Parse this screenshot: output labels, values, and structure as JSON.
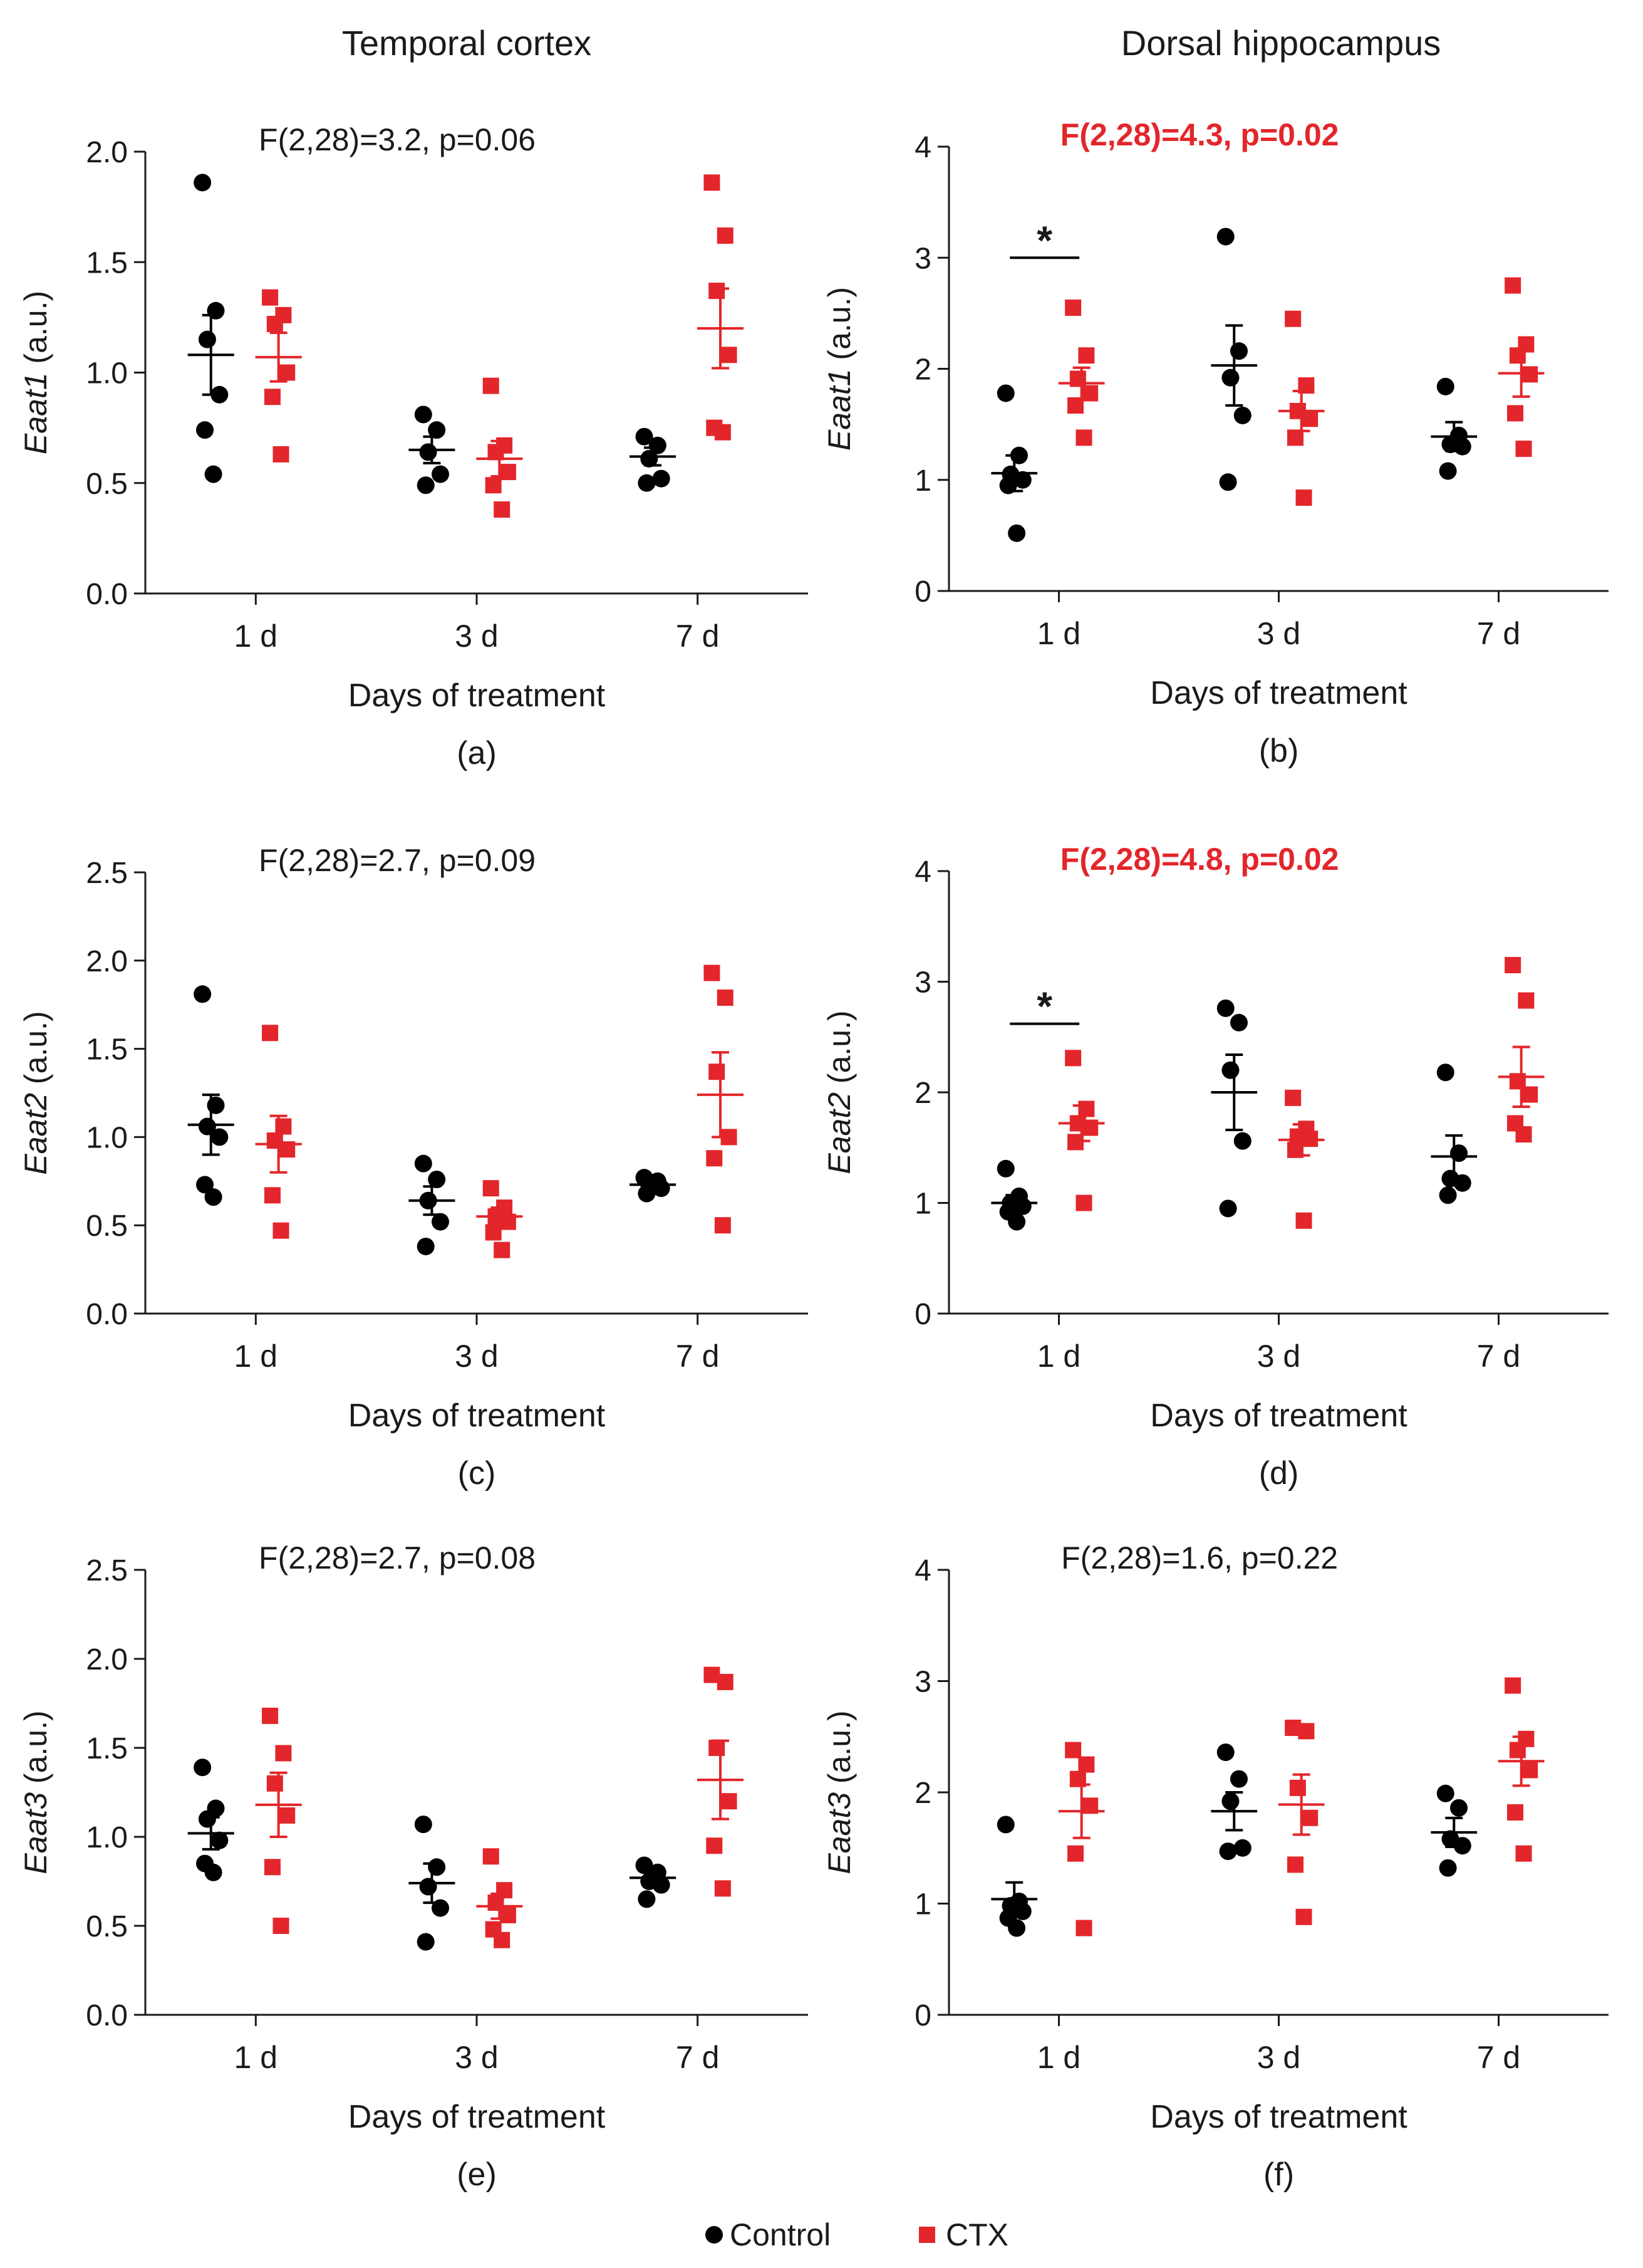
{
  "figure": {
    "column_titles": [
      "Temporal cortex",
      "Dorsal hippocampus"
    ],
    "legend": [
      {
        "label": "Control",
        "marker": "circle",
        "color": "#000000"
      },
      {
        "label": "CTX",
        "marker": "square",
        "color": "#e3262b"
      }
    ]
  },
  "colors": {
    "control": "#000000",
    "ctx": "#e3262b",
    "axis": "#1a1a1a"
  },
  "chart_data": [
    {
      "panel": "(a)",
      "type": "scatter",
      "region": "Temporal cortex",
      "stat": "F(2,28)=3.2, p=0.06",
      "stat_highlight": false,
      "ylabel_gene": "Eaat1",
      "ylabel_unit": " (a.u.)",
      "xlabel": "Days of treatment",
      "categories": [
        "1 d",
        "3 d",
        "7 d"
      ],
      "ylim": [
        0,
        2.0
      ],
      "yticks": [
        0,
        0.5,
        1.0,
        1.5,
        2.0
      ],
      "ytick_labels": [
        "0.0",
        "0.5",
        "1.0",
        "1.5",
        "2.0"
      ],
      "series": [
        {
          "name": "Control",
          "points": [
            [
              1.86,
              1.28,
              1.15,
              0.9,
              0.74,
              0.54
            ],
            [
              0.81,
              0.74,
              0.64,
              0.54,
              0.49
            ],
            [
              0.71,
              0.67,
              0.61,
              0.52,
              0.5
            ]
          ],
          "mean": [
            1.08,
            0.65,
            0.62
          ],
          "sem": [
            0.18,
            0.06,
            0.04
          ]
        },
        {
          "name": "CTX",
          "points": [
            [
              1.34,
              1.26,
              1.22,
              1.0,
              0.89,
              0.63
            ],
            [
              0.94,
              0.67,
              0.64,
              0.55,
              0.49,
              0.38
            ],
            [
              1.86,
              1.62,
              1.37,
              1.08,
              0.75,
              0.73
            ]
          ],
          "mean": [
            1.07,
            0.61,
            1.2
          ],
          "sem": [
            0.11,
            0.08,
            0.18
          ]
        }
      ],
      "significance": []
    },
    {
      "panel": "(b)",
      "type": "scatter",
      "region": "Dorsal hippocampus",
      "stat": "F(2,28)=4.3, p=0.02",
      "stat_highlight": true,
      "ylabel_gene": "Eaat1",
      "ylabel_unit": " (a.u.)",
      "xlabel": "Days of treatment",
      "categories": [
        "1 d",
        "3 d",
        "7 d"
      ],
      "ylim": [
        0,
        4
      ],
      "yticks": [
        0,
        1,
        2,
        3,
        4
      ],
      "ytick_labels": [
        "0",
        "1",
        "2",
        "3",
        "4"
      ],
      "series": [
        {
          "name": "Control",
          "points": [
            [
              1.78,
              1.22,
              1.05,
              1.0,
              0.95,
              0.52
            ],
            [
              3.19,
              2.16,
              1.92,
              1.58,
              0.98
            ],
            [
              1.84,
              1.4,
              1.32,
              1.3,
              1.08
            ]
          ],
          "mean": [
            1.06,
            2.03,
            1.39
          ],
          "sem": [
            0.16,
            0.36,
            0.13
          ]
        },
        {
          "name": "CTX",
          "points": [
            [
              2.55,
              2.12,
              1.91,
              1.78,
              1.67,
              1.38
            ],
            [
              2.45,
              1.85,
              1.62,
              1.55,
              1.38,
              0.84
            ],
            [
              2.75,
              2.22,
              2.12,
              1.95,
              1.6,
              1.28
            ]
          ],
          "mean": [
            1.87,
            1.62,
            1.96
          ],
          "sem": [
            0.14,
            0.18,
            0.21
          ]
        }
      ],
      "significance": [
        {
          "category": "1 d",
          "y": 3.0,
          "label": "*"
        }
      ]
    },
    {
      "panel": "(c)",
      "type": "scatter",
      "region": "Temporal cortex",
      "stat": "F(2,28)=2.7, p=0.09",
      "stat_highlight": false,
      "ylabel_gene": "Eaat2",
      "ylabel_unit": " (a.u.)",
      "xlabel": "Days of treatment",
      "categories": [
        "1 d",
        "3 d",
        "7 d"
      ],
      "ylim": [
        0,
        2.5
      ],
      "yticks": [
        0,
        0.5,
        1.0,
        1.5,
        2.0,
        2.5
      ],
      "ytick_labels": [
        "0.0",
        "0.5",
        "1.0",
        "1.5",
        "2.0",
        "2.5"
      ],
      "series": [
        {
          "name": "Control",
          "points": [
            [
              1.81,
              1.18,
              1.06,
              1.0,
              0.73,
              0.66
            ],
            [
              0.85,
              0.76,
              0.64,
              0.52,
              0.38
            ],
            [
              0.77,
              0.75,
              0.73,
              0.71,
              0.68
            ]
          ],
          "mean": [
            1.07,
            0.64,
            0.73
          ],
          "sem": [
            0.17,
            0.08,
            0.02
          ]
        },
        {
          "name": "CTX",
          "points": [
            [
              1.59,
              1.06,
              0.98,
              0.93,
              0.67,
              0.47
            ],
            [
              0.71,
              0.6,
              0.55,
              0.52,
              0.46,
              0.36
            ],
            [
              1.93,
              1.79,
              1.37,
              1.0,
              0.88,
              0.5
            ]
          ],
          "mean": [
            0.96,
            0.55,
            1.24
          ],
          "sem": [
            0.16,
            0.05,
            0.24
          ]
        }
      ],
      "significance": []
    },
    {
      "panel": "(d)",
      "type": "scatter",
      "region": "Dorsal hippocampus",
      "stat": "F(2,28)=4.8, p=0.02",
      "stat_highlight": true,
      "ylabel_gene": "Eaat2",
      "ylabel_unit": " (a.u.)",
      "xlabel": "Days of treatment",
      "categories": [
        "1 d",
        "3 d",
        "7 d"
      ],
      "ylim": [
        0,
        4
      ],
      "yticks": [
        0,
        1,
        2,
        3,
        4
      ],
      "ytick_labels": [
        "0",
        "1",
        "2",
        "3",
        "4"
      ],
      "series": [
        {
          "name": "Control",
          "points": [
            [
              1.31,
              1.06,
              1.0,
              0.97,
              0.92,
              0.83
            ],
            [
              2.76,
              2.63,
              2.2,
              1.56,
              0.95
            ],
            [
              2.18,
              1.45,
              1.22,
              1.18,
              1.07
            ]
          ],
          "mean": [
            1.0,
            2.0,
            1.42
          ],
          "sem": [
            0.07,
            0.34,
            0.19
          ]
        },
        {
          "name": "CTX",
          "points": [
            [
              2.31,
              1.85,
              1.72,
              1.68,
              1.55,
              1.0
            ],
            [
              1.95,
              1.67,
              1.6,
              1.58,
              1.48,
              0.84
            ],
            [
              3.15,
              2.83,
              2.1,
              1.98,
              1.72,
              1.62
            ]
          ],
          "mean": [
            1.72,
            1.57,
            2.14
          ],
          "sem": [
            0.16,
            0.14,
            0.27
          ]
        }
      ],
      "significance": [
        {
          "category": "1 d",
          "y": 2.62,
          "label": "*"
        }
      ]
    },
    {
      "panel": "(e)",
      "type": "scatter",
      "region": "Temporal cortex",
      "stat": "F(2,28)=2.7, p=0.08",
      "stat_highlight": false,
      "ylabel_gene": "Eaat3",
      "ylabel_unit": " (a.u.)",
      "xlabel": "Days of treatment",
      "categories": [
        "1 d",
        "3 d",
        "7 d"
      ],
      "ylim": [
        0,
        2.5
      ],
      "yticks": [
        0,
        0.5,
        1.0,
        1.5,
        2.0,
        2.5
      ],
      "ytick_labels": [
        "0.0",
        "0.5",
        "1.0",
        "1.5",
        "2.0",
        "2.5"
      ],
      "series": [
        {
          "name": "Control",
          "points": [
            [
              1.39,
              1.16,
              1.1,
              0.98,
              0.85,
              0.8
            ],
            [
              1.07,
              0.83,
              0.72,
              0.6,
              0.41
            ],
            [
              0.84,
              0.8,
              0.75,
              0.73,
              0.65
            ]
          ],
          "mean": [
            1.02,
            0.74,
            0.77
          ],
          "sem": [
            0.09,
            0.11,
            0.04
          ]
        },
        {
          "name": "CTX",
          "points": [
            [
              1.68,
              1.47,
              1.3,
              1.12,
              0.83,
              0.5
            ],
            [
              0.89,
              0.7,
              0.63,
              0.56,
              0.48,
              0.42
            ],
            [
              1.91,
              1.87,
              1.5,
              1.2,
              0.95,
              0.71
            ]
          ],
          "mean": [
            1.18,
            0.61,
            1.32
          ],
          "sem": [
            0.18,
            0.07,
            0.22
          ]
        }
      ],
      "significance": []
    },
    {
      "panel": "(f)",
      "type": "scatter",
      "region": "Dorsal hippocampus",
      "stat": "F(2,28)=1.6, p=0.22",
      "stat_highlight": false,
      "ylabel_gene": "Eaat3",
      "ylabel_unit": " (a.u.)",
      "xlabel": "Days of treatment",
      "categories": [
        "1 d",
        "3 d",
        "7 d"
      ],
      "ylim": [
        0,
        4
      ],
      "yticks": [
        0,
        1,
        2,
        3,
        4
      ],
      "ytick_labels": [
        "0",
        "1",
        "2",
        "3",
        "4"
      ],
      "series": [
        {
          "name": "Control",
          "points": [
            [
              1.71,
              1.02,
              0.98,
              0.93,
              0.87,
              0.78
            ],
            [
              2.36,
              2.12,
              1.92,
              1.5,
              1.47
            ],
            [
              1.99,
              1.86,
              1.58,
              1.52,
              1.32
            ]
          ],
          "mean": [
            1.04,
            1.83,
            1.64
          ],
          "sem": [
            0.15,
            0.17,
            0.13
          ]
        },
        {
          "name": "CTX",
          "points": [
            [
              2.38,
              2.25,
              2.12,
              1.88,
              1.45,
              0.78
            ],
            [
              2.58,
              2.55,
              2.04,
              1.77,
              1.35,
              0.88
            ],
            [
              2.96,
              2.48,
              2.38,
              2.2,
              1.82,
              1.45
            ]
          ],
          "mean": [
            1.83,
            1.89,
            2.28
          ],
          "sem": [
            0.24,
            0.27,
            0.22
          ]
        }
      ],
      "significance": []
    }
  ]
}
